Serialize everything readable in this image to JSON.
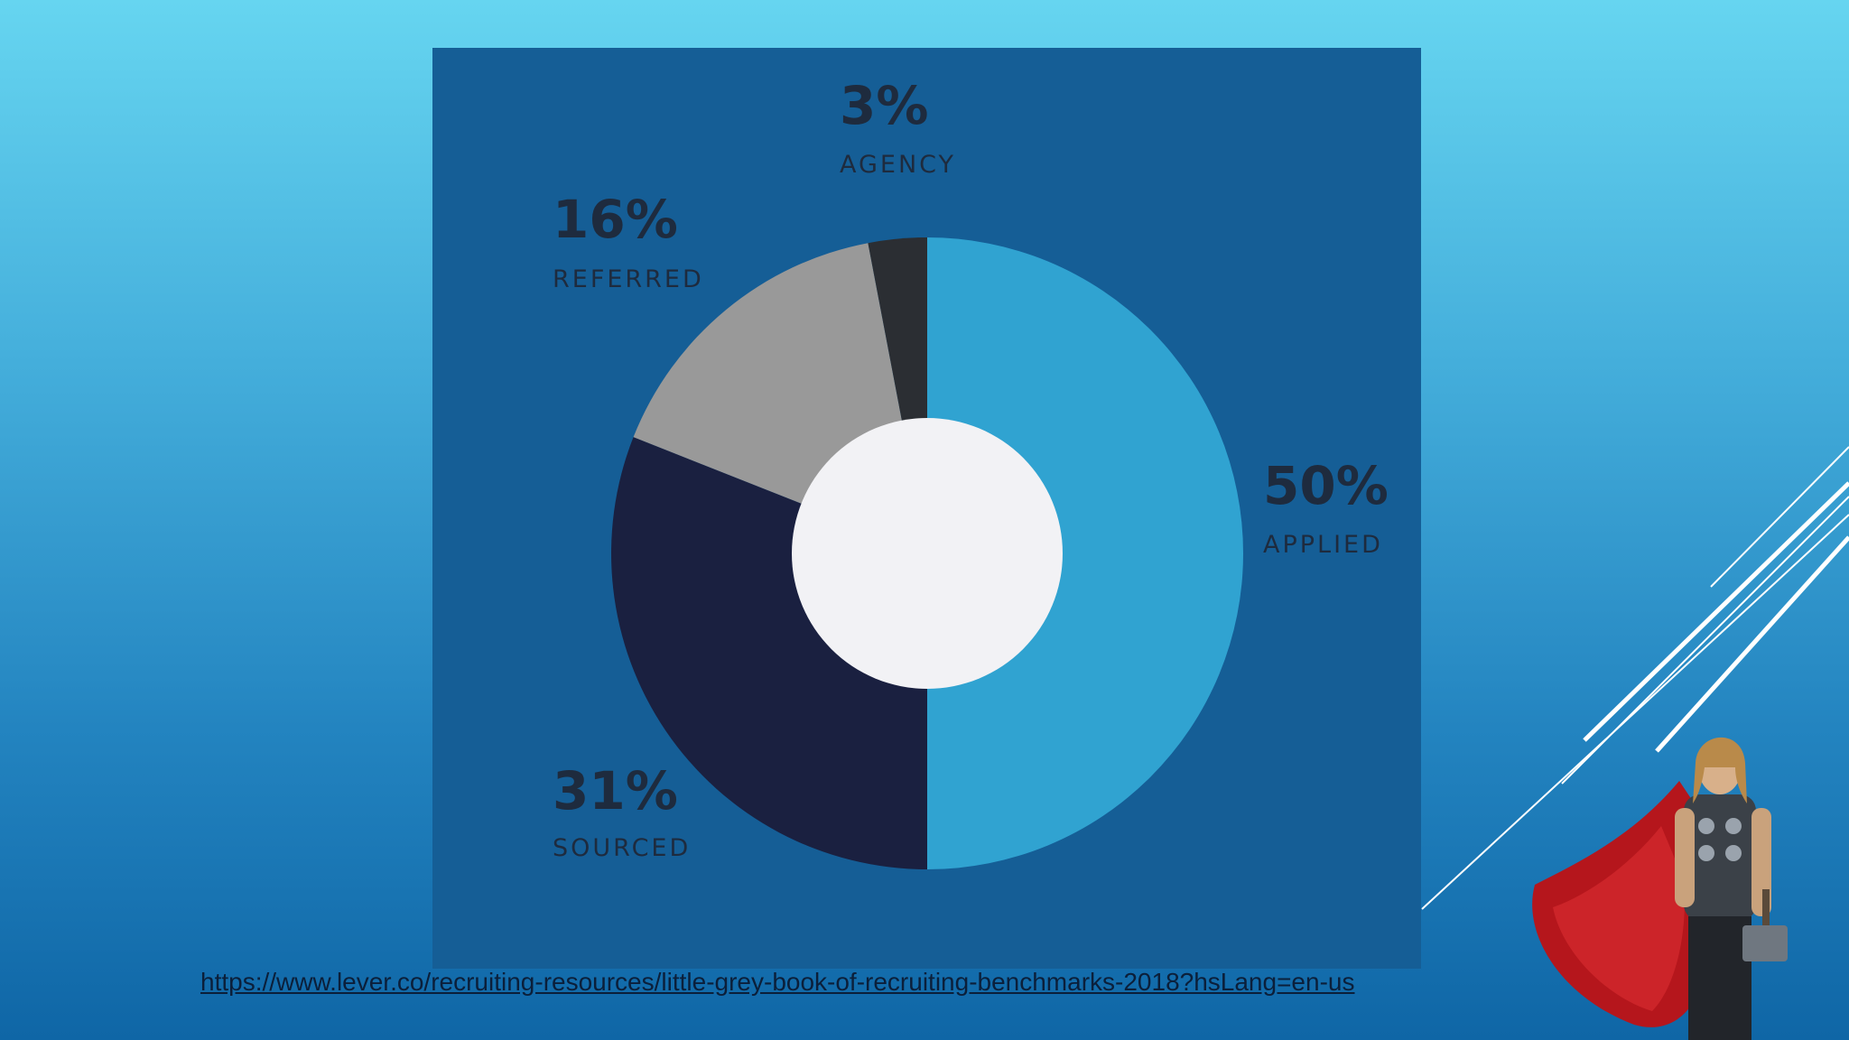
{
  "chart_data": {
    "type": "pie",
    "donut": true,
    "slices": [
      {
        "label": "APPLIED",
        "value": 50,
        "value_text": "50%",
        "color": "#30a3d1"
      },
      {
        "label": "SOURCED",
        "value": 31,
        "value_text": "31%",
        "color": "#1a2040"
      },
      {
        "label": "REFERRED",
        "value": 16,
        "value_text": "16%",
        "color": "#999999"
      },
      {
        "label": "AGENCY",
        "value": 3,
        "value_text": "3%",
        "color": "#2b2e33"
      }
    ],
    "start": "12 o'clock",
    "direction": "clockwise",
    "hole_color": "#f2f2f5",
    "background": "#155e96"
  },
  "source": {
    "url_text": "https://www.lever.co/recruiting-resources/little-grey-book-of-recruiting-benchmarks-2018?hsLang=en-us"
  },
  "decoration": {
    "line_color": "#ffffff",
    "figure_icon": "caped-hero-illustration"
  }
}
